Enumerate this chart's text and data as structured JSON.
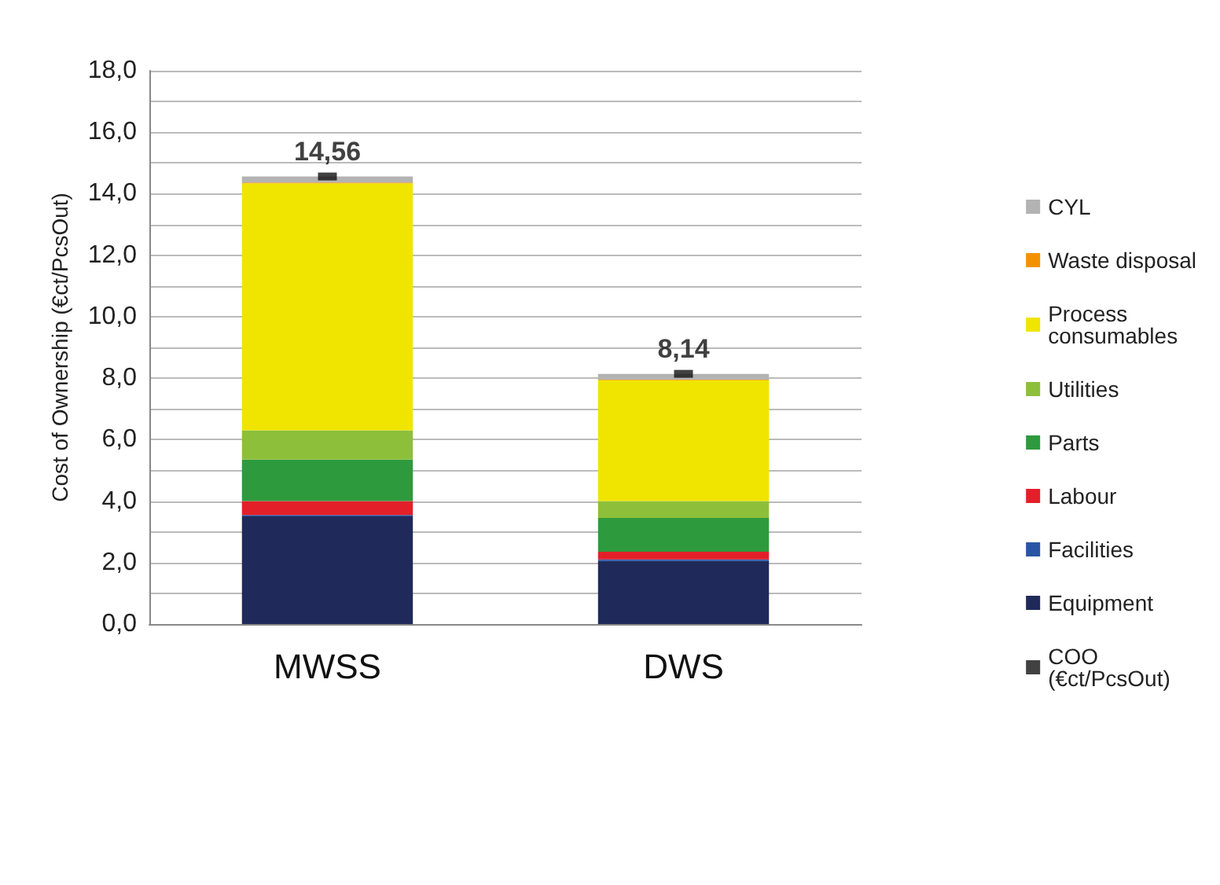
{
  "chart_data": {
    "type": "bar",
    "stacked": true,
    "ylabel": "Cost of Ownership (€ct/PcsOut)",
    "categories": [
      "MWSS",
      "DWS"
    ],
    "series": [
      {
        "name": "Equipment",
        "color": "#1f2a5a",
        "values": [
          3.5,
          2.05
        ]
      },
      {
        "name": "Facilities",
        "color": "#2a55a5",
        "values": [
          0.05,
          0.05
        ]
      },
      {
        "name": "Labour",
        "color": "#e3202a",
        "values": [
          0.45,
          0.25
        ]
      },
      {
        "name": "Parts",
        "color": "#2e9a3e",
        "values": [
          1.35,
          1.1
        ]
      },
      {
        "name": "Utilities",
        "color": "#8dbf3a",
        "values": [
          0.95,
          0.55
        ]
      },
      {
        "name": "Process consumables",
        "color": "#f0e500",
        "values": [
          8.04,
          3.93
        ]
      },
      {
        "name": "Waste disposal",
        "color": "#f39200",
        "values": [
          0.02,
          0.02
        ]
      },
      {
        "name": "CYL",
        "color": "#b3b3b3",
        "values": [
          0.2,
          0.19
        ]
      },
      {
        "name": "COO (€ct/PcsOut)",
        "type": "scatter",
        "color": "#111111",
        "values": [
          14.56,
          8.14
        ],
        "value_labels": [
          "14,56",
          "8,14"
        ]
      }
    ],
    "ylim": [
      0,
      18
    ],
    "yticks": [
      {
        "value": 0,
        "label": "0,0"
      },
      {
        "value": 1,
        "label": null
      },
      {
        "value": 2,
        "label": "2,0"
      },
      {
        "value": 3,
        "label": null
      },
      {
        "value": 4,
        "label": "4,0"
      },
      {
        "value": 5,
        "label": null
      },
      {
        "value": 6,
        "label": "6,0"
      },
      {
        "value": 7,
        "label": null
      },
      {
        "value": 8,
        "label": "8,0"
      },
      {
        "value": 9,
        "label": null
      },
      {
        "value": 10,
        "label": "10,0"
      },
      {
        "value": 11,
        "label": null
      },
      {
        "value": 12,
        "label": "12,0"
      },
      {
        "value": 13,
        "label": null
      },
      {
        "value": 14,
        "label": "14,0"
      },
      {
        "value": 15,
        "label": null
      },
      {
        "value": 16,
        "label": "16,0"
      },
      {
        "value": 17,
        "label": null
      },
      {
        "value": 18,
        "label": "18,0"
      }
    ],
    "grid": "y",
    "legend": "right"
  }
}
